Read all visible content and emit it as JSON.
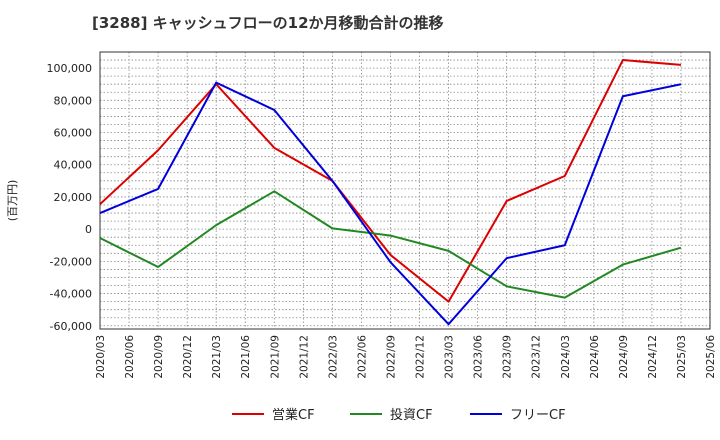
{
  "chart_data": {
    "type": "line",
    "title": "[3288]  キャッシュフローの12か月移動合計の推移",
    "ylabel": "(百万円)",
    "xlabel": "",
    "ylim": [
      -62000,
      110000
    ],
    "yticks": [
      100000,
      80000,
      60000,
      40000,
      20000,
      0,
      -20000,
      -40000,
      -60000
    ],
    "ytick_labels": [
      "100,000",
      "80,000",
      "60,000",
      "40,000",
      "20,000",
      "0",
      "-20,000",
      "-40,000",
      "-60,000"
    ],
    "x_labels": [
      "2020/03",
      "2020/06",
      "2020/09",
      "2020/12",
      "2021/03",
      "2021/06",
      "2021/09",
      "2021/12",
      "2022/03",
      "2022/06",
      "2022/09",
      "2022/12",
      "2023/03",
      "2023/06",
      "2023/09",
      "2023/12",
      "2024/03",
      "2024/06",
      "2024/09",
      "2024/12",
      "2025/03",
      "2025/06"
    ],
    "grid": true,
    "legend_position": "bottom",
    "series": [
      {
        "name": "営業CF",
        "color": "#dd0000",
        "x": [
          "2020/03",
          "2020/09",
          "2021/03",
          "2021/09",
          "2022/03",
          "2022/09",
          "2023/03",
          "2023/09",
          "2024/03",
          "2024/09",
          "2025/03"
        ],
        "values": [
          15500,
          49000,
          90000,
          50500,
          30000,
          -16000,
          -45000,
          17500,
          33000,
          105000,
          102000
        ]
      },
      {
        "name": "投資CF",
        "color": "#228822",
        "x": [
          "2020/03",
          "2020/09",
          "2021/03",
          "2021/09",
          "2022/03",
          "2022/09",
          "2023/03",
          "2023/09",
          "2024/03",
          "2024/09",
          "2025/03"
        ],
        "values": [
          -5500,
          -23500,
          2500,
          23500,
          500,
          -4000,
          -13500,
          -35500,
          -42500,
          -22000,
          -11500
        ]
      },
      {
        "name": "フリーCF",
        "color": "#0000dd",
        "x": [
          "2020/03",
          "2020/09",
          "2021/03",
          "2021/09",
          "2022/03",
          "2022/09",
          "2023/03",
          "2023/09",
          "2024/03",
          "2024/09",
          "2025/03"
        ],
        "values": [
          10000,
          25000,
          91000,
          74000,
          30000,
          -20500,
          -59000,
          -18000,
          -10000,
          82500,
          90000
        ]
      }
    ]
  }
}
